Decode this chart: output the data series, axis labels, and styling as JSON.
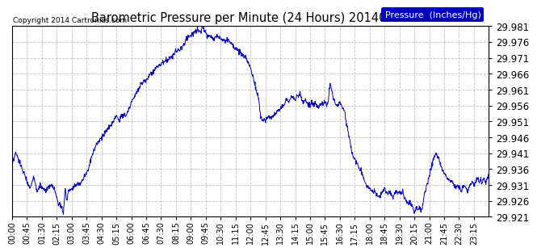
{
  "title": "Barometric Pressure per Minute (24 Hours) 20140804",
  "copyright": "Copyright 2014 Cartronics.com",
  "legend_label": "Pressure  (Inches/Hg)",
  "line_color": "#0000bb",
  "background_color": "#ffffff",
  "grid_color": "#bbbbbb",
  "ylim": [
    29.921,
    29.981
  ],
  "yticks": [
    29.921,
    29.926,
    29.931,
    29.936,
    29.941,
    29.946,
    29.951,
    29.956,
    29.961,
    29.966,
    29.971,
    29.976,
    29.981
  ],
  "xtick_labels": [
    "00:00",
    "00:45",
    "01:30",
    "02:15",
    "03:00",
    "03:45",
    "04:30",
    "05:15",
    "06:00",
    "06:45",
    "07:30",
    "08:15",
    "09:00",
    "09:45",
    "10:30",
    "11:15",
    "12:00",
    "12:45",
    "13:30",
    "14:15",
    "15:00",
    "15:45",
    "16:30",
    "17:15",
    "18:00",
    "18:45",
    "19:30",
    "20:15",
    "21:00",
    "21:45",
    "22:30",
    "23:15"
  ],
  "keypoints": [
    [
      0,
      29.937
    ],
    [
      10,
      29.941
    ],
    [
      20,
      29.939
    ],
    [
      30,
      29.936
    ],
    [
      40,
      29.934
    ],
    [
      45,
      29.932
    ],
    [
      55,
      29.93
    ],
    [
      65,
      29.934
    ],
    [
      75,
      29.929
    ],
    [
      85,
      29.931
    ],
    [
      90,
      29.93
    ],
    [
      100,
      29.929
    ],
    [
      110,
      29.93
    ],
    [
      120,
      29.931
    ],
    [
      130,
      29.929
    ],
    [
      140,
      29.925
    ],
    [
      150,
      29.924
    ],
    [
      155,
      29.922
    ],
    [
      160,
      29.93
    ],
    [
      165,
      29.926
    ],
    [
      170,
      29.929
    ],
    [
      180,
      29.93
    ],
    [
      190,
      29.931
    ],
    [
      200,
      29.931
    ],
    [
      210,
      29.932
    ],
    [
      220,
      29.934
    ],
    [
      230,
      29.936
    ],
    [
      240,
      29.94
    ],
    [
      255,
      29.944
    ],
    [
      270,
      29.946
    ],
    [
      285,
      29.948
    ],
    [
      300,
      29.95
    ],
    [
      315,
      29.953
    ],
    [
      325,
      29.951
    ],
    [
      330,
      29.953
    ],
    [
      345,
      29.953
    ],
    [
      360,
      29.957
    ],
    [
      380,
      29.961
    ],
    [
      390,
      29.963
    ],
    [
      405,
      29.964
    ],
    [
      420,
      29.966
    ],
    [
      435,
      29.968
    ],
    [
      450,
      29.969
    ],
    [
      460,
      29.97
    ],
    [
      480,
      29.971
    ],
    [
      495,
      29.973
    ],
    [
      510,
      29.974
    ],
    [
      520,
      29.975
    ],
    [
      525,
      29.977
    ],
    [
      535,
      29.978
    ],
    [
      540,
      29.978
    ],
    [
      550,
      29.979
    ],
    [
      560,
      29.98
    ],
    [
      570,
      29.979
    ],
    [
      575,
      29.981
    ],
    [
      580,
      29.98
    ],
    [
      585,
      29.979
    ],
    [
      590,
      29.978
    ],
    [
      600,
      29.978
    ],
    [
      610,
      29.977
    ],
    [
      620,
      29.978
    ],
    [
      630,
      29.977
    ],
    [
      645,
      29.976
    ],
    [
      650,
      29.977
    ],
    [
      660,
      29.976
    ],
    [
      675,
      29.974
    ],
    [
      685,
      29.973
    ],
    [
      695,
      29.972
    ],
    [
      705,
      29.971
    ],
    [
      715,
      29.969
    ],
    [
      720,
      29.968
    ],
    [
      730,
      29.964
    ],
    [
      740,
      29.96
    ],
    [
      745,
      29.958
    ],
    [
      750,
      29.953
    ],
    [
      755,
      29.951
    ],
    [
      760,
      29.952
    ],
    [
      765,
      29.951
    ],
    [
      775,
      29.953
    ],
    [
      780,
      29.952
    ],
    [
      790,
      29.953
    ],
    [
      800,
      29.954
    ],
    [
      810,
      29.955
    ],
    [
      820,
      29.956
    ],
    [
      825,
      29.957
    ],
    [
      830,
      29.958
    ],
    [
      835,
      29.957
    ],
    [
      840,
      29.958
    ],
    [
      850,
      29.959
    ],
    [
      855,
      29.958
    ],
    [
      860,
      29.959
    ],
    [
      865,
      29.959
    ],
    [
      870,
      29.96
    ],
    [
      875,
      29.958
    ],
    [
      880,
      29.957
    ],
    [
      885,
      29.958
    ],
    [
      890,
      29.957
    ],
    [
      895,
      29.956
    ],
    [
      900,
      29.956
    ],
    [
      905,
      29.957
    ],
    [
      910,
      29.956
    ],
    [
      915,
      29.957
    ],
    [
      920,
      29.956
    ],
    [
      925,
      29.955
    ],
    [
      930,
      29.956
    ],
    [
      935,
      29.957
    ],
    [
      940,
      29.956
    ],
    [
      945,
      29.957
    ],
    [
      950,
      29.956
    ],
    [
      955,
      29.957
    ],
    [
      960,
      29.963
    ],
    [
      965,
      29.961
    ],
    [
      970,
      29.958
    ],
    [
      975,
      29.957
    ],
    [
      980,
      29.956
    ],
    [
      985,
      29.956
    ],
    [
      990,
      29.957
    ],
    [
      995,
      29.956
    ],
    [
      1000,
      29.955
    ],
    [
      1005,
      29.954
    ],
    [
      1010,
      29.95
    ],
    [
      1015,
      29.948
    ],
    [
      1020,
      29.945
    ],
    [
      1025,
      29.942
    ],
    [
      1030,
      29.94
    ],
    [
      1035,
      29.939
    ],
    [
      1040,
      29.938
    ],
    [
      1045,
      29.937
    ],
    [
      1050,
      29.936
    ],
    [
      1060,
      29.934
    ],
    [
      1065,
      29.932
    ],
    [
      1070,
      29.931
    ],
    [
      1080,
      29.93
    ],
    [
      1090,
      29.929
    ],
    [
      1095,
      29.929
    ],
    [
      1100,
      29.928
    ],
    [
      1110,
      29.927
    ],
    [
      1115,
      29.928
    ],
    [
      1120,
      29.929
    ],
    [
      1125,
      29.93
    ],
    [
      1130,
      29.929
    ],
    [
      1135,
      29.928
    ],
    [
      1140,
      29.929
    ],
    [
      1145,
      29.928
    ],
    [
      1150,
      29.927
    ],
    [
      1155,
      29.928
    ],
    [
      1160,
      29.929
    ],
    [
      1165,
      29.928
    ],
    [
      1170,
      29.929
    ],
    [
      1175,
      29.928
    ],
    [
      1180,
      29.929
    ],
    [
      1185,
      29.927
    ],
    [
      1190,
      29.926
    ],
    [
      1195,
      29.925
    ],
    [
      1200,
      29.926
    ],
    [
      1205,
      29.925
    ],
    [
      1210,
      29.924
    ],
    [
      1215,
      29.922
    ],
    [
      1220,
      29.924
    ],
    [
      1225,
      29.923
    ],
    [
      1230,
      29.924
    ],
    [
      1235,
      29.923
    ],
    [
      1240,
      29.924
    ],
    [
      1245,
      29.928
    ],
    [
      1250,
      29.93
    ],
    [
      1255,
      29.932
    ],
    [
      1260,
      29.934
    ],
    [
      1265,
      29.936
    ],
    [
      1270,
      29.938
    ],
    [
      1275,
      29.94
    ],
    [
      1280,
      29.941
    ],
    [
      1285,
      29.94
    ],
    [
      1290,
      29.939
    ],
    [
      1295,
      29.937
    ],
    [
      1300,
      29.936
    ],
    [
      1305,
      29.935
    ],
    [
      1310,
      29.934
    ],
    [
      1315,
      29.933
    ],
    [
      1320,
      29.933
    ],
    [
      1325,
      29.932
    ],
    [
      1330,
      29.932
    ],
    [
      1335,
      29.931
    ],
    [
      1340,
      29.93
    ],
    [
      1345,
      29.931
    ],
    [
      1350,
      29.93
    ],
    [
      1355,
      29.929
    ],
    [
      1360,
      29.93
    ],
    [
      1365,
      29.931
    ],
    [
      1370,
      29.93
    ],
    [
      1375,
      29.929
    ],
    [
      1380,
      29.93
    ],
    [
      1385,
      29.931
    ],
    [
      1390,
      29.932
    ],
    [
      1395,
      29.931
    ],
    [
      1400,
      29.932
    ],
    [
      1405,
      29.933
    ],
    [
      1410,
      29.932
    ],
    [
      1415,
      29.933
    ],
    [
      1420,
      29.932
    ],
    [
      1425,
      29.933
    ],
    [
      1430,
      29.932
    ],
    [
      1435,
      29.933
    ],
    [
      1439,
      29.934
    ]
  ]
}
